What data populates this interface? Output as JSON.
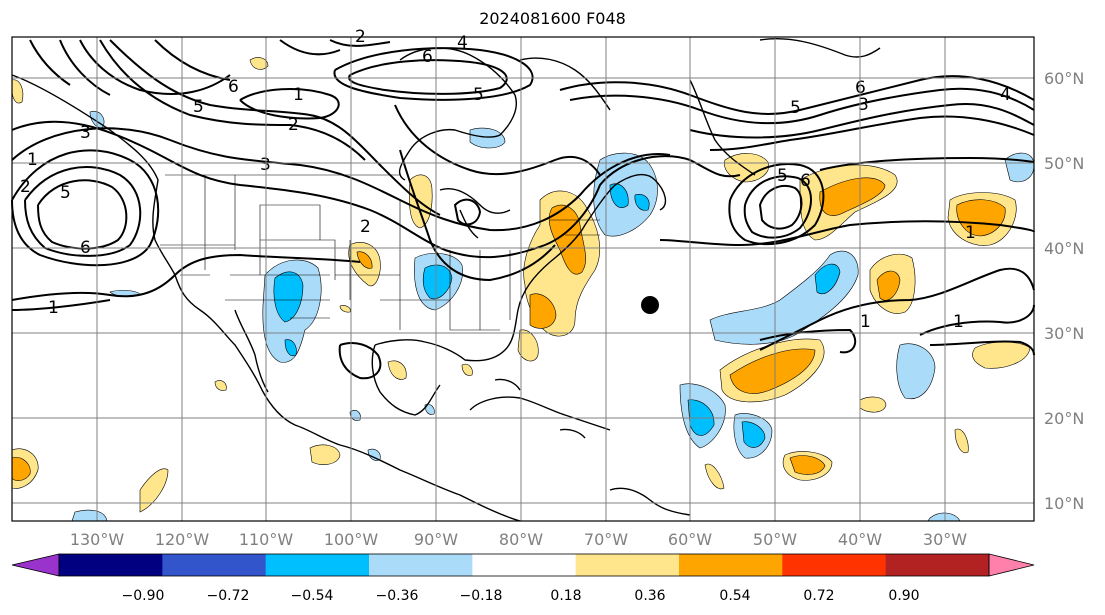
{
  "title": "2024081600 F048",
  "lon_labels": [
    "130°W",
    "120°W",
    "110°W",
    "100°W",
    "90°W",
    "80°W",
    "70°W",
    "60°W",
    "50°W",
    "40°W",
    "30°W"
  ],
  "lat_labels": [
    "60°N",
    "50°N",
    "40°N",
    "30°N",
    "20°N",
    "10°N"
  ],
  "colorbar": {
    "ticks": [
      "−0.90",
      "−0.72",
      "−0.54",
      "−0.36",
      "−0.18",
      "0.18",
      "0.36",
      "0.54",
      "0.72",
      "0.90"
    ],
    "colors": [
      "#9933cc",
      "#000080",
      "#3355cc",
      "#00bfff",
      "#aadcfa",
      "#ffffff",
      "#ffe68c",
      "#ffa500",
      "#ff3300",
      "#b22222",
      "#ff80aa"
    ]
  },
  "contour_labels": [
    "1",
    "2",
    "3",
    "4",
    "5",
    "6",
    "1",
    "2",
    "3",
    "5",
    "6",
    "1",
    "2",
    "5",
    "6",
    "5",
    "6",
    "3",
    "4",
    "1",
    "1",
    "1",
    "5",
    "6",
    "2"
  ],
  "marker": "storm-center"
}
